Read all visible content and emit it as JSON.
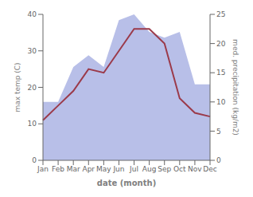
{
  "chart_data": {
    "type": "line",
    "categories": [
      "Jan",
      "Feb",
      "Mar",
      "Apr",
      "May",
      "Jun",
      "Jul",
      "Aug",
      "Sep",
      "Oct",
      "Nov",
      "Dec"
    ],
    "xlabel": "date (month)",
    "ylabel": "max temp (C)",
    "y2label": "med. precipitation (kg/m2)",
    "ylim": [
      0,
      40
    ],
    "yticks": [
      0,
      10,
      20,
      30,
      40
    ],
    "y2lim": [
      0,
      25
    ],
    "y2ticks": [
      0,
      5,
      10,
      15,
      20,
      25
    ],
    "series": [
      {
        "type": "area",
        "color": "#b8bfe8",
        "axis": "y2",
        "values": [
          10,
          10,
          16,
          18,
          16,
          24,
          25,
          22,
          21,
          22,
          13,
          13
        ]
      },
      {
        "type": "line",
        "color": "#9b3a4a",
        "values": [
          11,
          15,
          19,
          25,
          24,
          30,
          36,
          36,
          32,
          17,
          13,
          12
        ]
      }
    ]
  }
}
